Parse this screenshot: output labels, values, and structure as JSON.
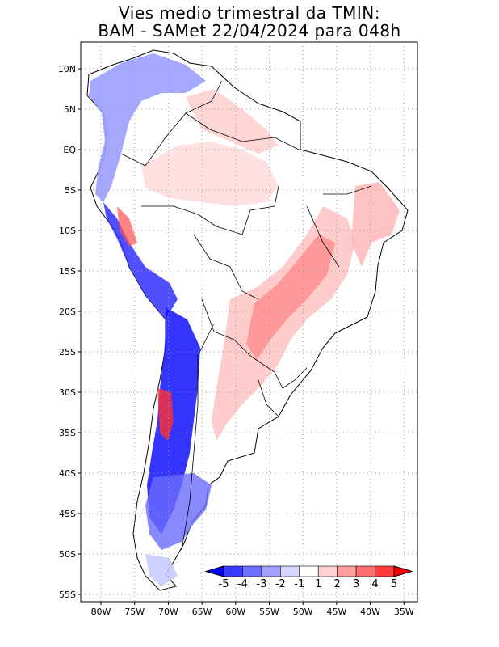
{
  "title_line1": "Vies medio trimestral da TMIN:",
  "title_line2": "BAM - SAMet 22/04/2024  para 048h",
  "lat_labels": [
    "10N",
    "5N",
    "EQ",
    "5S",
    "10S",
    "15S",
    "20S",
    "25S",
    "30S",
    "35S",
    "40S",
    "45S",
    "50S",
    "55S"
  ],
  "lon_labels": [
    "80W",
    "75W",
    "70W",
    "65W",
    "60W",
    "55W",
    "50W",
    "45W",
    "40W",
    "35W"
  ],
  "colorbar": {
    "labels": [
      "-5",
      "-4",
      "-3",
      "-2",
      "-1",
      "1",
      "2",
      "3",
      "4",
      "5"
    ],
    "colors": [
      "#0000ff",
      "#3b3bff",
      "#6e6eff",
      "#a0a0ff",
      "#d6d6ff",
      "#ffffff",
      "#ffd0d0",
      "#ff9f9f",
      "#ff6f6f",
      "#ff3b3b",
      "#ff0000"
    ]
  },
  "palette": {
    "land_neutral": "#ffffff",
    "warm_light": "#ffd6d6",
    "warm_mid": "#ff9c9c",
    "warm_strong": "#ff6a6a",
    "cool_light": "#d8dcff",
    "cool_mid": "#8a8aff",
    "cool_strong": "#0000ff",
    "grid": "#9a9a9a",
    "frame": "#000000"
  }
}
